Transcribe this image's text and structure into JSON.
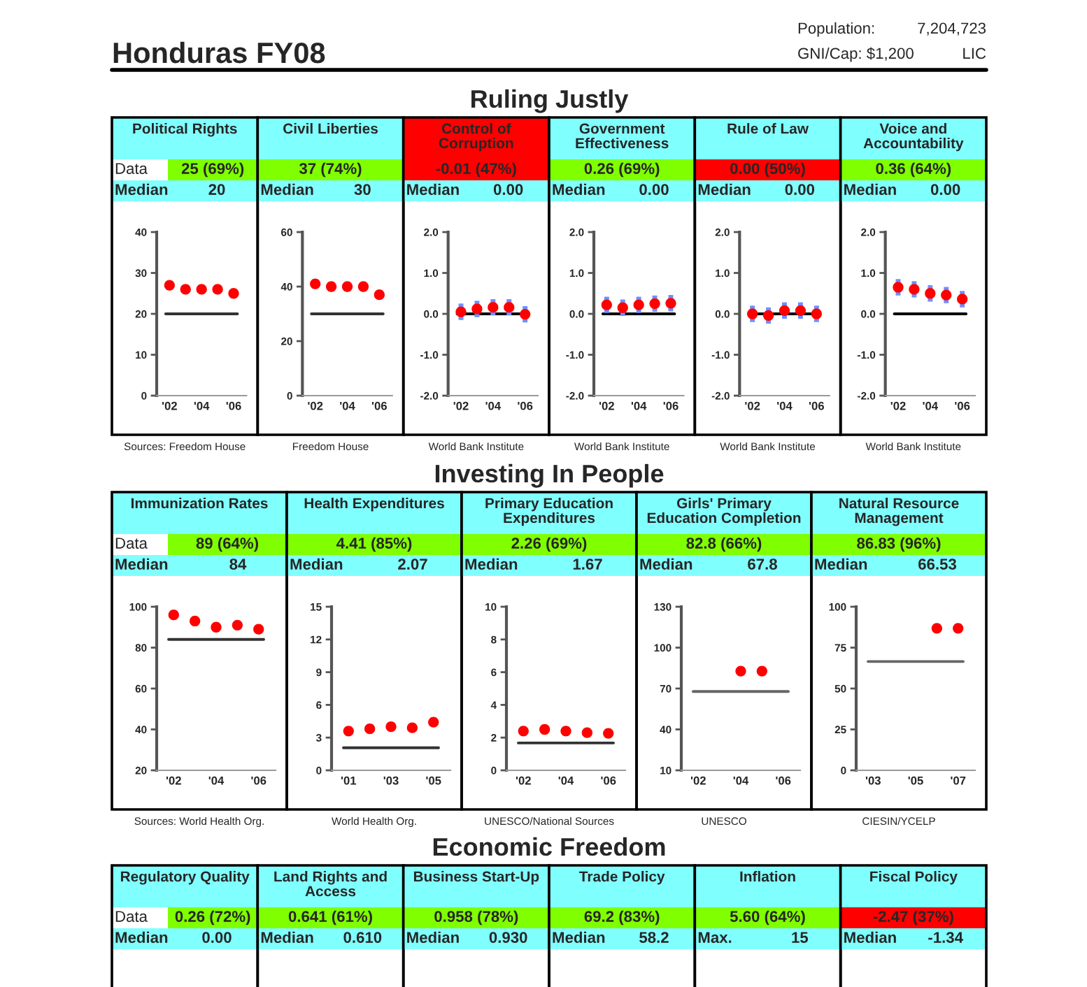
{
  "chart_data": [
    {
      "type": "other",
      "title": "Honduras FY08",
      "annotations": [
        "Population:",
        "7,204,723",
        "GNI/Cap: $1,200",
        "LIC"
      ]
    },
    {
      "type": "other",
      "title": "Ruling Justly",
      "annotations": [
        "Data"
      ]
    },
    {
      "type": "scatter",
      "title": "Political Rights",
      "colors": [
        "#80ffff",
        "#80ff00",
        "#80ffff"
      ],
      "annotations": [
        "25 (69%)",
        "Median",
        "20",
        "Sources: Freedom House"
      ],
      "marker": "circle",
      "x": [
        2002,
        2003,
        2004,
        2005,
        2006
      ],
      "xlim": [
        2001.2,
        2006.8
      ],
      "xticks": [
        {
          "value": 2002,
          "label": "'02"
        },
        {
          "value": 2004,
          "label": "'04"
        },
        {
          "value": 2006,
          "label": "'06"
        }
      ],
      "ylim": [
        0,
        40
      ],
      "yticks": [
        0,
        10,
        20,
        30,
        40
      ],
      "ref_lines": [
        {
          "axis": "y",
          "value": 20,
          "color": "#333333"
        }
      ],
      "series": [
        {
          "color": "#ff0000",
          "values": [
            27,
            26,
            26,
            26,
            25
          ]
        }
      ]
    },
    {
      "type": "scatter",
      "title": "Civil Liberties",
      "colors": [
        "#80ffff",
        "#80ff00",
        "#80ffff"
      ],
      "annotations": [
        "37 (74%)",
        "Median",
        "30",
        "Freedom House"
      ],
      "marker": "circle",
      "x": [
        2002,
        2003,
        2004,
        2005,
        2006
      ],
      "xlim": [
        2001.2,
        2006.8
      ],
      "xticks": [
        {
          "value": 2002,
          "label": "'02"
        },
        {
          "value": 2004,
          "label": "'04"
        },
        {
          "value": 2006,
          "label": "'06"
        }
      ],
      "ylim": [
        0,
        60
      ],
      "yticks": [
        0,
        20,
        40,
        60
      ],
      "ref_lines": [
        {
          "axis": "y",
          "value": 30,
          "color": "#333333"
        }
      ],
      "series": [
        {
          "color": "#ff0000",
          "values": [
            41,
            40,
            40,
            40,
            37
          ]
        }
      ]
    },
    {
      "type": "scatter",
      "title": "Control of Corruption",
      "colors": [
        "#ff0000",
        "#ff0000",
        "#80ffff"
      ],
      "annotations": [
        "-0.01 (47%)",
        "Median",
        "0.00",
        "World Bank Institute"
      ],
      "marker": "circle",
      "x": [
        2002,
        2003,
        2004,
        2005,
        2006
      ],
      "xlim": [
        2001.2,
        2006.8
      ],
      "xticks": [
        {
          "value": 2002,
          "label": "'02"
        },
        {
          "value": 2004,
          "label": "'04"
        },
        {
          "value": 2006,
          "label": "'06"
        }
      ],
      "ylim": [
        -2,
        2
      ],
      "yticks": [
        {
          "value": -2,
          "label": "-2.0"
        },
        {
          "value": -1,
          "label": "-1.0"
        },
        {
          "value": 0,
          "label": "0.0"
        },
        {
          "value": 1,
          "label": "1.0"
        },
        {
          "value": 2,
          "label": "2.0"
        }
      ],
      "ref_lines": [
        {
          "axis": "y",
          "value": 0,
          "color": "#000000"
        }
      ],
      "series": [
        {
          "color": "#ff0000",
          "values": [
            0.05,
            0.12,
            0.16,
            0.16,
            -0.01
          ],
          "errors": [
            0.2,
            0.2,
            0.2,
            0.2,
            0.2
          ]
        }
      ]
    },
    {
      "type": "scatter",
      "title": "Government Effectiveness",
      "colors": [
        "#80ffff",
        "#80ff00",
        "#80ffff"
      ],
      "annotations": [
        "0.26 (69%)",
        "Median",
        "0.00",
        "World Bank Institute"
      ],
      "marker": "circle",
      "x": [
        2002,
        2003,
        2004,
        2005,
        2006
      ],
      "xlim": [
        2001.2,
        2006.8
      ],
      "xticks": [
        {
          "value": 2002,
          "label": "'02"
        },
        {
          "value": 2004,
          "label": "'04"
        },
        {
          "value": 2006,
          "label": "'06"
        }
      ],
      "ylim": [
        -2,
        2
      ],
      "yticks": [
        {
          "value": -2,
          "label": "-2.0"
        },
        {
          "value": -1,
          "label": "-1.0"
        },
        {
          "value": 0,
          "label": "0.0"
        },
        {
          "value": 1,
          "label": "1.0"
        },
        {
          "value": 2,
          "label": "2.0"
        }
      ],
      "ref_lines": [
        {
          "axis": "y",
          "value": 0,
          "color": "#000000"
        }
      ],
      "series": [
        {
          "color": "#ff0000",
          "values": [
            0.22,
            0.15,
            0.22,
            0.25,
            0.26
          ],
          "errors": [
            0.2,
            0.2,
            0.2,
            0.2,
            0.2
          ]
        }
      ]
    },
    {
      "type": "scatter",
      "title": "Rule of Law",
      "colors": [
        "#80ffff",
        "#ff0000",
        "#80ffff"
      ],
      "annotations": [
        "0.00 (50%)",
        "Median",
        "0.00",
        "World Bank Institute"
      ],
      "marker": "circle",
      "x": [
        2002,
        2003,
        2004,
        2005,
        2006
      ],
      "xlim": [
        2001.2,
        2006.8
      ],
      "xticks": [
        {
          "value": 2002,
          "label": "'02"
        },
        {
          "value": 2004,
          "label": "'04"
        },
        {
          "value": 2006,
          "label": "'06"
        }
      ],
      "ylim": [
        -2,
        2
      ],
      "yticks": [
        {
          "value": -2,
          "label": "-2.0"
        },
        {
          "value": -1,
          "label": "-1.0"
        },
        {
          "value": 0,
          "label": "0.0"
        },
        {
          "value": 1,
          "label": "1.0"
        },
        {
          "value": 2,
          "label": "2.0"
        }
      ],
      "ref_lines": [
        {
          "axis": "y",
          "value": 0,
          "color": "#000000"
        }
      ],
      "series": [
        {
          "color": "#ff0000",
          "values": [
            0.0,
            -0.04,
            0.08,
            0.08,
            0.0
          ],
          "errors": [
            0.2,
            0.2,
            0.2,
            0.2,
            0.2
          ]
        }
      ]
    },
    {
      "type": "scatter",
      "title": "Voice and Accountability",
      "colors": [
        "#80ffff",
        "#80ff00",
        "#80ffff"
      ],
      "annotations": [
        "0.36 (64%)",
        "Median",
        "0.00",
        "World Bank Institute"
      ],
      "marker": "circle",
      "x": [
        2002,
        2003,
        2004,
        2005,
        2006
      ],
      "xlim": [
        2001.2,
        2006.8
      ],
      "xticks": [
        {
          "value": 2002,
          "label": "'02"
        },
        {
          "value": 2004,
          "label": "'04"
        },
        {
          "value": 2006,
          "label": "'06"
        }
      ],
      "ylim": [
        -2,
        2
      ],
      "yticks": [
        {
          "value": -2,
          "label": "-2.0"
        },
        {
          "value": -1,
          "label": "-1.0"
        },
        {
          "value": 0,
          "label": "0.0"
        },
        {
          "value": 1,
          "label": "1.0"
        },
        {
          "value": 2,
          "label": "2.0"
        }
      ],
      "ref_lines": [
        {
          "axis": "y",
          "value": 0,
          "color": "#000000"
        }
      ],
      "series": [
        {
          "color": "#ff0000",
          "values": [
            0.65,
            0.6,
            0.5,
            0.46,
            0.36
          ],
          "errors": [
            0.2,
            0.2,
            0.2,
            0.2,
            0.2
          ]
        }
      ]
    },
    {
      "type": "other",
      "title": "Investing In People",
      "annotations": [
        "Data"
      ]
    },
    {
      "type": "scatter",
      "title": "Immunization Rates",
      "colors": [
        "#80ffff",
        "#80ff00",
        "#80ffff"
      ],
      "annotations": [
        "89 (64%)",
        "Median",
        "84",
        "Sources: World Health Org."
      ],
      "marker": "circle",
      "x": [
        2002,
        2003,
        2004,
        2005,
        2006
      ],
      "xlim": [
        2001.2,
        2006.8
      ],
      "xticks": [
        {
          "value": 2002,
          "label": "'02"
        },
        {
          "value": 2004,
          "label": "'04"
        },
        {
          "value": 2006,
          "label": "'06"
        }
      ],
      "ylim": [
        20,
        100
      ],
      "yticks": [
        20,
        40,
        60,
        80,
        100
      ],
      "ref_lines": [
        {
          "axis": "y",
          "value": 84,
          "color": "#333333"
        }
      ],
      "series": [
        {
          "color": "#ff0000",
          "values": [
            96,
            93,
            90,
            91,
            89
          ]
        }
      ]
    },
    {
      "type": "scatter",
      "title": "Health Expenditures",
      "colors": [
        "#80ffff",
        "#80ff00",
        "#80ffff"
      ],
      "annotations": [
        "4.41 (85%)",
        "Median",
        "2.07",
        "World Health Org."
      ],
      "marker": "circle",
      "x": [
        2001,
        2002,
        2003,
        2004,
        2005
      ],
      "xlim": [
        2000.2,
        2005.8
      ],
      "xticks": [
        {
          "value": 2001,
          "label": "'01"
        },
        {
          "value": 2003,
          "label": "'03"
        },
        {
          "value": 2005,
          "label": "'05"
        }
      ],
      "ylim": [
        0,
        15
      ],
      "yticks": [
        0,
        3,
        6,
        9,
        12,
        15
      ],
      "ref_lines": [
        {
          "axis": "y",
          "value": 2.07,
          "color": "#333333"
        }
      ],
      "series": [
        {
          "color": "#ff0000",
          "values": [
            3.6,
            3.8,
            4.0,
            3.9,
            4.41
          ]
        }
      ]
    },
    {
      "type": "scatter",
      "title": "Primary Education Expenditures",
      "colors": [
        "#80ffff",
        "#80ff00",
        "#80ffff"
      ],
      "annotations": [
        "2.26 (69%)",
        "Median",
        "1.67",
        "UNESCO/National Sources"
      ],
      "marker": "circle",
      "x": [
        2002,
        2003,
        2004,
        2005,
        2006
      ],
      "xlim": [
        2001.2,
        2006.8
      ],
      "xticks": [
        {
          "value": 2002,
          "label": "'02"
        },
        {
          "value": 2004,
          "label": "'04"
        },
        {
          "value": 2006,
          "label": "'06"
        }
      ],
      "ylim": [
        0,
        10
      ],
      "yticks": [
        0,
        2,
        4,
        6,
        8,
        10
      ],
      "ref_lines": [
        {
          "axis": "y",
          "value": 1.67,
          "color": "#333333"
        }
      ],
      "series": [
        {
          "color": "#ff0000",
          "values": [
            2.4,
            2.5,
            2.4,
            2.3,
            2.26
          ]
        }
      ]
    },
    {
      "type": "scatter",
      "title": "Girls' Primary Education Completion",
      "colors": [
        "#80ffff",
        "#80ff00",
        "#80ffff"
      ],
      "annotations": [
        "82.8 (66%)",
        "Median",
        "67.8",
        "UNESCO"
      ],
      "marker": "circle",
      "x": [
        2004,
        2005
      ],
      "xlim": [
        2001.2,
        2006.8
      ],
      "xticks": [
        {
          "value": 2002,
          "label": "'02"
        },
        {
          "value": 2004,
          "label": "'04"
        },
        {
          "value": 2006,
          "label": "'06"
        }
      ],
      "ylim": [
        10,
        130
      ],
      "yticks": [
        10,
        40,
        70,
        100,
        130
      ],
      "ref_lines": [
        {
          "axis": "y",
          "value": 67.8,
          "color": "#666666"
        }
      ],
      "series": [
        {
          "color": "#ff0000",
          "values": [
            82.8,
            82.8
          ]
        }
      ]
    },
    {
      "type": "scatter",
      "title": "Natural Resource Management",
      "colors": [
        "#80ffff",
        "#80ff00",
        "#80ffff"
      ],
      "annotations": [
        "86.83 (96%)",
        "Median",
        "66.53",
        "CIESIN/YCELP"
      ],
      "marker": "circle",
      "x": [
        2006,
        2007
      ],
      "xlim": [
        2002.2,
        2007.8
      ],
      "xticks": [
        {
          "value": 2003,
          "label": "'03"
        },
        {
          "value": 2005,
          "label": "'05"
        },
        {
          "value": 2007,
          "label": "'07"
        }
      ],
      "ylim": [
        0,
        100
      ],
      "yticks": [
        0,
        25,
        50,
        75,
        100
      ],
      "ref_lines": [
        {
          "axis": "y",
          "value": 66.53,
          "color": "#666666"
        }
      ],
      "series": [
        {
          "color": "#ff0000",
          "values": [
            86.83,
            86.83
          ]
        }
      ]
    },
    {
      "type": "other",
      "title": "Economic Freedom",
      "annotations": [
        "Data"
      ]
    },
    {
      "type": "other",
      "title": "Regulatory Quality",
      "colors": [
        "#80ffff",
        "#80ff00",
        "#80ffff"
      ],
      "annotations": [
        "0.26 (72%)",
        "Median",
        "0.00"
      ]
    },
    {
      "type": "other",
      "title": "Land Rights and Access",
      "colors": [
        "#80ffff",
        "#80ff00",
        "#80ffff"
      ],
      "annotations": [
        "0.641 (61%)",
        "Median",
        "0.610"
      ]
    },
    {
      "type": "other",
      "title": "Business Start-Up",
      "colors": [
        "#80ffff",
        "#80ff00",
        "#80ffff"
      ],
      "annotations": [
        "0.958 (78%)",
        "Median",
        "0.930"
      ]
    },
    {
      "type": "other",
      "title": "Trade Policy",
      "colors": [
        "#80ffff",
        "#80ff00",
        "#80ffff"
      ],
      "annotations": [
        "69.2 (83%)",
        "Median",
        "58.2"
      ]
    },
    {
      "type": "other",
      "title": "Inflation",
      "colors": [
        "#80ffff",
        "#80ff00",
        "#80ffff"
      ],
      "annotations": [
        "5.60 (64%)",
        "Max.",
        "15"
      ]
    },
    {
      "type": "other",
      "title": "Fiscal Policy",
      "colors": [
        "#80ffff",
        "#ff0000",
        "#80ffff"
      ],
      "annotations": [
        "-2.47 (37%)",
        "Median",
        "-1.34"
      ]
    }
  ]
}
